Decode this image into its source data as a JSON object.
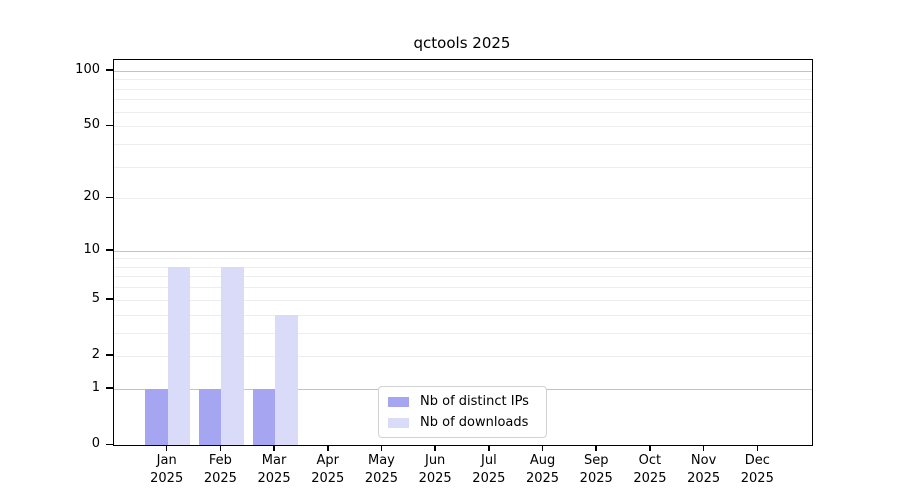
{
  "chart_data": {
    "type": "bar",
    "title": "qctools 2025",
    "categories": [
      "Jan",
      "Feb",
      "Mar",
      "Apr",
      "May",
      "Jun",
      "Jul",
      "Aug",
      "Sep",
      "Oct",
      "Nov",
      "Dec"
    ],
    "category_year_label": "2025",
    "series": [
      {
        "name": "Nb of distinct IPs",
        "color": "#a5a5f2",
        "values": [
          1,
          1,
          1,
          0,
          0,
          0,
          0,
          0,
          0,
          0,
          0,
          0
        ]
      },
      {
        "name": "Nb of downloads",
        "color": "#dadaf9",
        "values": [
          8,
          8,
          4,
          0,
          0,
          0,
          0,
          0,
          0,
          0,
          0,
          0
        ]
      }
    ],
    "xlabel": "",
    "ylabel": "",
    "y_axis": {
      "scale": "log1p",
      "ticks": [
        0,
        1,
        2,
        5,
        10,
        20,
        50,
        100
      ],
      "major_gridlines": [
        1,
        10,
        100
      ],
      "minor_gridlines": [
        2,
        3,
        4,
        5,
        6,
        7,
        8,
        9,
        20,
        30,
        40,
        50,
        60,
        70,
        80,
        90
      ],
      "top_value": 114.5
    },
    "grid": "on",
    "legend_position": "lower center",
    "colors": {
      "axis": "#000000",
      "major_grid": "#c3c3c3",
      "minor_grid": "#ededed",
      "background": "#ffffff"
    }
  }
}
